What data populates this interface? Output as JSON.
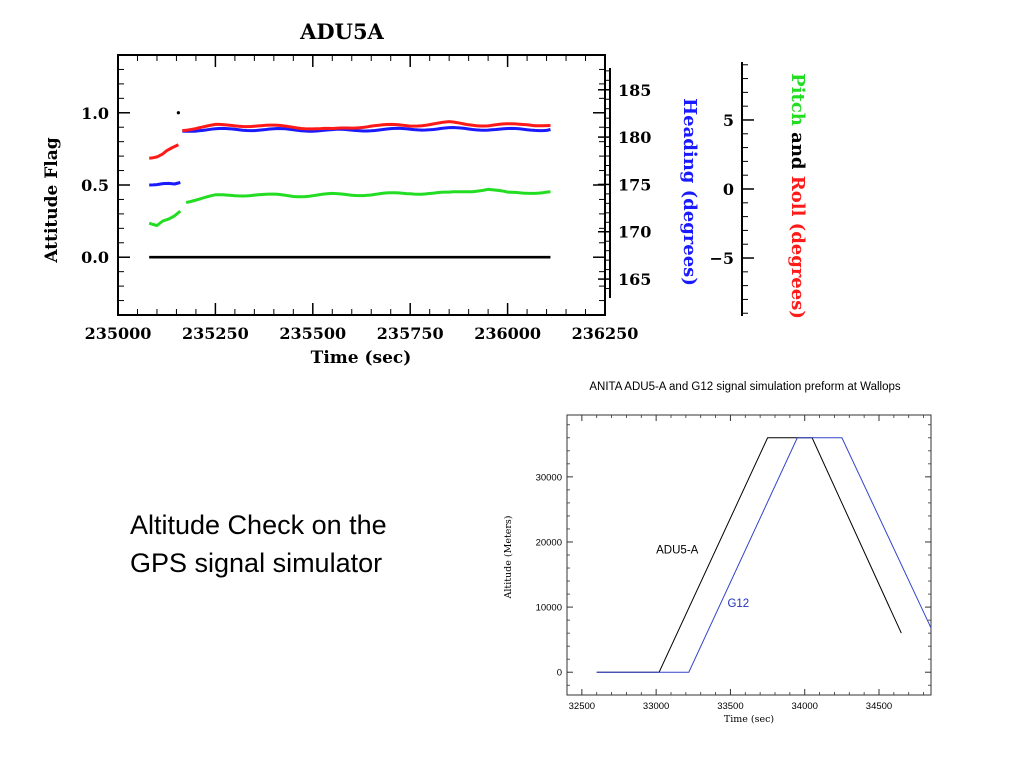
{
  "slide": {
    "caption_lines": [
      "Altitude Check on the",
      "GPS signal simulator"
    ]
  },
  "colors": {
    "attitude_flag": "#000000",
    "heading": "#1a1aff",
    "roll": "#ff1a1a",
    "pitch": "#22dd22",
    "adu5a_line": "#000000",
    "g12_line": "#3344cc",
    "g12_label": "#2233bb"
  },
  "chart_data": [
    {
      "id": "adu5a",
      "type": "scatter",
      "title": "ADU5A",
      "xlabel": "Time (sec)",
      "ylabel": "Attitude Flag",
      "right_label_1": "Heading (degrees)",
      "right_label_2_parts": [
        {
          "text": "Pitch",
          "color_key": "pitch"
        },
        {
          "text": " and ",
          "color_key": "attitude_flag"
        },
        {
          "text": "Roll (degrees)",
          "color_key": "roll"
        }
      ],
      "xlim": [
        235000,
        236250
      ],
      "ylim": [
        -0.4,
        1.4
      ],
      "heading_lim": [
        163,
        187.3
      ],
      "pitch_roll_lim": [
        -9.2,
        9.2
      ],
      "x_ticks": [
        "235000",
        "235250",
        "235500",
        "235750",
        "236000",
        "236250"
      ],
      "y_ticks": [
        "0.0",
        "0.5",
        "1.0"
      ],
      "heading_ticks": [
        "165",
        "170",
        "175",
        "180",
        "185"
      ],
      "pitch_roll_ticks": [
        "−5",
        "0",
        "5"
      ],
      "grid": false,
      "series": [
        {
          "name": "Attitude Flag",
          "axis": "left",
          "color_key": "attitude_flag",
          "points": [
            [
              235080,
              0
            ],
            [
              235300,
              0
            ],
            [
              235600,
              0
            ],
            [
              235900,
              0
            ],
            [
              236110,
              0
            ]
          ],
          "markers": [
            [
              235155,
              1.0
            ]
          ]
        },
        {
          "name": "Heading",
          "axis": "heading",
          "color_key": "heading",
          "points": [
            [
              235080,
              175.0
            ],
            [
              235100,
              175.1
            ],
            [
              235115,
              175.2
            ],
            [
              235130,
              175.2
            ],
            [
              235145,
              175.1
            ],
            [
              235160,
              175.2
            ],
            [
              235165,
              180.7
            ],
            [
              235250,
              180.8
            ],
            [
              235400,
              180.8
            ],
            [
              235550,
              180.7
            ],
            [
              235700,
              180.8
            ],
            [
              235850,
              180.9
            ],
            [
              236000,
              180.8
            ],
            [
              236110,
              180.8
            ]
          ]
        },
        {
          "name": "Roll",
          "axis": "pitch_roll",
          "color_key": "roll",
          "points": [
            [
              235080,
              2.3
            ],
            [
              235100,
              2.4
            ],
            [
              235115,
              2.6
            ],
            [
              235125,
              2.8
            ],
            [
              235140,
              3.0
            ],
            [
              235155,
              3.2
            ],
            [
              235165,
              4.3
            ],
            [
              235250,
              4.6
            ],
            [
              235350,
              4.6
            ],
            [
              235450,
              4.5
            ],
            [
              235550,
              4.3
            ],
            [
              235650,
              4.6
            ],
            [
              235750,
              4.6
            ],
            [
              235850,
              4.8
            ],
            [
              235950,
              4.6
            ],
            [
              236050,
              4.7
            ],
            [
              236110,
              4.6
            ]
          ]
        },
        {
          "name": "Pitch",
          "axis": "pitch_roll",
          "color_key": "pitch",
          "points": [
            [
              235080,
              -2.4
            ],
            [
              235100,
              -2.6
            ],
            [
              235115,
              -2.3
            ],
            [
              235130,
              -2.2
            ],
            [
              235145,
              -2.0
            ],
            [
              235160,
              -1.6
            ],
            [
              235175,
              -0.9
            ],
            [
              235250,
              -0.5
            ],
            [
              235350,
              -0.4
            ],
            [
              235450,
              -0.5
            ],
            [
              235550,
              -0.4
            ],
            [
              235650,
              -0.4
            ],
            [
              235750,
              -0.3
            ],
            [
              235850,
              -0.3
            ],
            [
              235950,
              0.0
            ],
            [
              236000,
              -0.3
            ],
            [
              236110,
              -0.2
            ]
          ]
        }
      ]
    },
    {
      "id": "altitude",
      "type": "line",
      "title": "ANITA ADU5-A and G12 signal simulation preform at Wallops",
      "xlabel": "Time (sec)",
      "ylabel": "Altitude (Meters)",
      "xlim": [
        32400,
        34850
      ],
      "ylim": [
        -3500,
        39500
      ],
      "x_ticks": [
        32500,
        33000,
        33500,
        34000,
        34500
      ],
      "y_ticks": [
        0,
        10000,
        20000,
        30000
      ],
      "grid": false,
      "series": [
        {
          "name": "ADU5-A",
          "color_key": "adu5a_line",
          "points": [
            [
              32600,
              0
            ],
            [
              33020,
              0
            ],
            [
              33750,
              36000
            ],
            [
              34050,
              36000
            ],
            [
              34650,
              6000
            ]
          ]
        },
        {
          "name": "G12",
          "color_key": "g12_line",
          "points": [
            [
              32600,
              0
            ],
            [
              33220,
              0
            ],
            [
              33950,
              36000
            ],
            [
              34250,
              36000
            ],
            [
              34850,
              6800
            ]
          ]
        }
      ],
      "annotations": [
        {
          "text": "ADU5-A",
          "x": 33000,
          "y": 18200,
          "color_key": "adu5a_line"
        },
        {
          "text": "G12",
          "x": 33480,
          "y": 10000,
          "color_key": "g12_label"
        }
      ]
    }
  ]
}
